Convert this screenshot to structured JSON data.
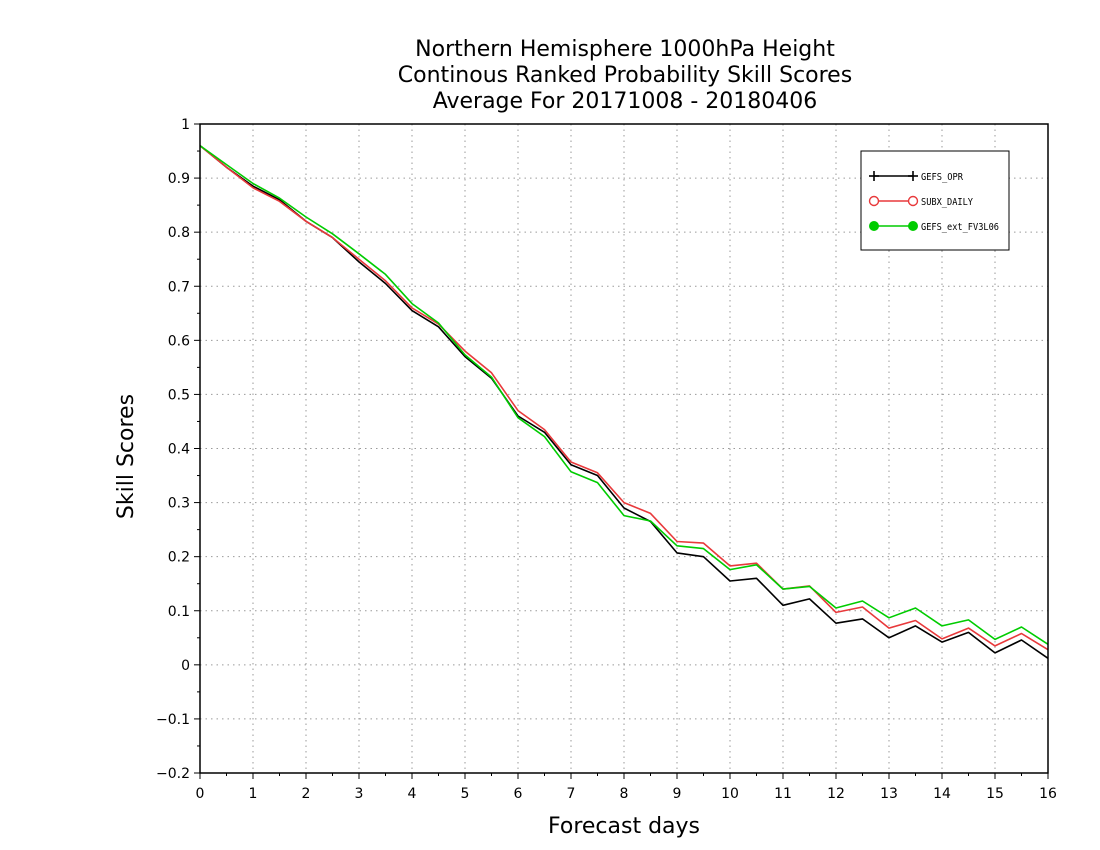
{
  "chart_data": {
    "type": "line",
    "title_lines": [
      "Northern Hemisphere 1000hPa Height",
      "Continous Ranked Probability Skill Scores",
      "Average For 20171008 - 20180406"
    ],
    "xlabel": "Forecast days",
    "ylabel": "Skill Scores",
    "xlim": [
      0,
      16
    ],
    "ylim": [
      -0.2,
      1
    ],
    "x_ticks": [
      "0",
      "1",
      "2",
      "3",
      "4",
      "5",
      "6",
      "7",
      "8",
      "9",
      "10",
      "11",
      "12",
      "13",
      "14",
      "15",
      "16"
    ],
    "y_ticks": [
      "-0.2",
      "-0.1",
      "0",
      "0.1",
      "0.2",
      "0.3",
      "0.4",
      "0.5",
      "0.6",
      "0.7",
      "0.8",
      "0.9",
      "1"
    ],
    "grid": true,
    "legend_position": "top-right",
    "x": [
      0,
      0.5,
      1,
      1.5,
      2,
      2.5,
      3,
      3.5,
      4,
      4.5,
      5,
      5.5,
      6,
      6.5,
      7,
      7.5,
      8,
      8.5,
      9,
      9.5,
      10,
      10.5,
      11,
      11.5,
      12,
      12.5,
      13,
      13.5,
      14,
      14.5,
      15,
      15.5,
      16
    ],
    "series": [
      {
        "name": "GEFS_OPR",
        "color": "#000000",
        "marker": "plus",
        "values": [
          0.96,
          0.92,
          0.885,
          0.86,
          0.82,
          0.79,
          0.745,
          0.705,
          0.655,
          0.625,
          0.57,
          0.53,
          0.46,
          0.43,
          0.37,
          0.35,
          0.29,
          0.265,
          0.207,
          0.2,
          0.155,
          0.16,
          0.11,
          0.122,
          0.077,
          0.085,
          0.05,
          0.072,
          0.042,
          0.06,
          0.022,
          0.046,
          0.012
        ]
      },
      {
        "name": "SUBX_DAILY",
        "color": "#e8393b",
        "marker": "open-circle",
        "values": [
          0.96,
          0.92,
          0.882,
          0.857,
          0.82,
          0.79,
          0.75,
          0.71,
          0.66,
          0.63,
          0.58,
          0.54,
          0.47,
          0.435,
          0.375,
          0.355,
          0.3,
          0.28,
          0.228,
          0.225,
          0.183,
          0.188,
          0.14,
          0.146,
          0.097,
          0.107,
          0.068,
          0.082,
          0.048,
          0.068,
          0.035,
          0.058,
          0.028
        ]
      },
      {
        "name": "GEFS_ext_FV3L06",
        "color": "#00cc00",
        "marker": "filled-circle",
        "values": [
          0.96,
          0.925,
          0.89,
          0.863,
          0.828,
          0.797,
          0.76,
          0.722,
          0.668,
          0.632,
          0.573,
          0.532,
          0.457,
          0.422,
          0.357,
          0.337,
          0.276,
          0.266,
          0.22,
          0.215,
          0.176,
          0.185,
          0.14,
          0.145,
          0.105,
          0.118,
          0.087,
          0.105,
          0.072,
          0.083,
          0.047,
          0.07,
          0.038
        ]
      }
    ]
  }
}
